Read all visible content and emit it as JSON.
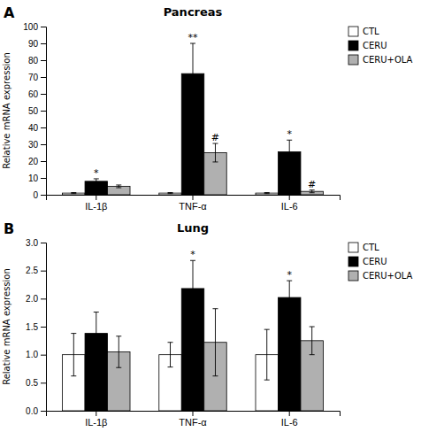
{
  "chart_data": [
    {
      "type": "bar",
      "title": "Pancreas",
      "panel_label": "A",
      "ylabel": "Relative mRNA expression",
      "categories": [
        "IL-1β",
        "TNF-α",
        "IL-6"
      ],
      "series": [
        {
          "name": "CTL",
          "color": "#ffffff",
          "values": [
            1.0,
            1.0,
            1.0
          ],
          "errors": [
            0.3,
            0.3,
            0.3
          ]
        },
        {
          "name": "CERU",
          "color": "#000000",
          "values": [
            8.0,
            72.0,
            25.5
          ],
          "errors": [
            1.5,
            18.0,
            7.0
          ],
          "annotations": [
            "*",
            "**",
            "*"
          ]
        },
        {
          "name": "CERU+OLA",
          "color": "#b0b0b0",
          "values": [
            5.0,
            25.0,
            2.0
          ],
          "errors": [
            0.8,
            5.5,
            0.8
          ],
          "annotations": [
            null,
            "#",
            "#"
          ]
        }
      ],
      "ylim": [
        0,
        100
      ],
      "yticks": [
        0,
        10,
        20,
        30,
        40,
        50,
        60,
        70,
        80,
        90,
        100
      ],
      "grid": false,
      "legend": "upper right"
    },
    {
      "type": "bar",
      "title": "Lung",
      "panel_label": "B",
      "ylabel": "Relative mRNA expression",
      "categories": [
        "IL-1β",
        "TNF-α",
        "IL-6"
      ],
      "series": [
        {
          "name": "CTL",
          "color": "#ffffff",
          "values": [
            1.0,
            1.0,
            1.0
          ],
          "errors": [
            0.38,
            0.22,
            0.45
          ]
        },
        {
          "name": "CERU",
          "color": "#000000",
          "values": [
            1.38,
            2.18,
            2.02
          ],
          "errors": [
            0.38,
            0.5,
            0.3
          ],
          "annotations": [
            null,
            "*",
            "*"
          ]
        },
        {
          "name": "CERU+OLA",
          "color": "#b0b0b0",
          "values": [
            1.05,
            1.22,
            1.25
          ],
          "errors": [
            0.28,
            0.6,
            0.25
          ]
        }
      ],
      "ylim": [
        0.0,
        3.0
      ],
      "yticks": [
        {
          "value": 0.0,
          "label": "0.0"
        },
        0.5,
        {
          "value": 1.0,
          "label": "1.0"
        },
        1.5,
        {
          "value": 2.0,
          "label": "2.0"
        },
        2.5,
        {
          "value": 3.0,
          "label": "3.0"
        }
      ],
      "grid": false,
      "legend": "upper right"
    }
  ]
}
